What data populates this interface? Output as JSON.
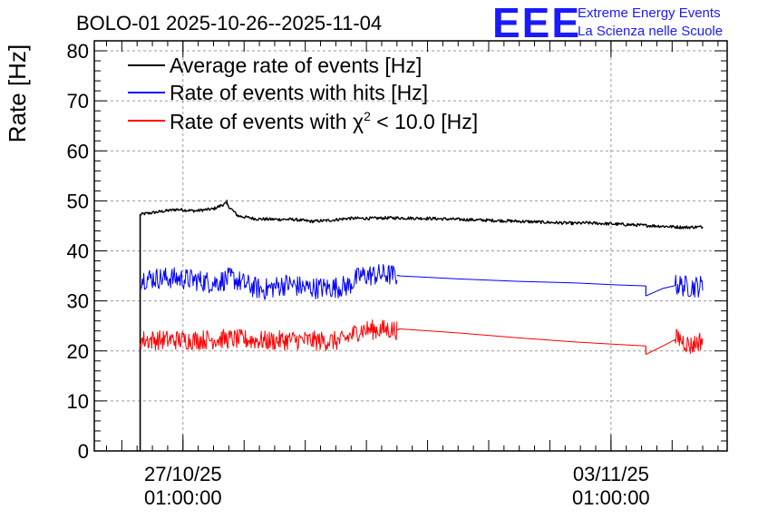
{
  "chart_data": {
    "type": "line",
    "title": "BOLO-01 2025-10-26--2025-11-04",
    "logo": {
      "mark": "EEE",
      "line1": "Extreme Energy Events",
      "line2": "La Scienza nelle Scuole"
    },
    "ylabel": "Rate [Hz]",
    "xlabel": "",
    "ylim": [
      0,
      82
    ],
    "yticks": [
      0,
      10,
      20,
      30,
      40,
      50,
      60,
      70,
      80
    ],
    "xlim": [
      25.55,
      35.9
    ],
    "xticks": [
      {
        "x": 27.0,
        "line1": "27/10/25",
        "line2": "01:00:00"
      },
      {
        "x": 34.0,
        "line1": "03/11/25",
        "line2": "01:00:00"
      }
    ],
    "grid": true,
    "legend_position": "top-left",
    "series": [
      {
        "name": "Average rate of events [Hz]",
        "legend_label": "Average rate of events [Hz]",
        "color": "#000000",
        "noise": 0.3,
        "start_drop_from": 0,
        "segments": [
          [
            [
              26.3,
              47.3
            ],
            [
              26.6,
              47.8
            ],
            [
              26.9,
              48.3
            ],
            [
              27.2,
              48.0
            ],
            [
              27.5,
              48.4
            ],
            [
              27.7,
              49.5
            ],
            [
              27.9,
              47.0
            ],
            [
              28.2,
              46.4
            ],
            [
              28.5,
              46.3
            ],
            [
              28.8,
              46.3
            ],
            [
              29.1,
              45.9
            ],
            [
              29.4,
              46.1
            ],
            [
              29.7,
              46.5
            ],
            [
              30.1,
              46.5
            ],
            [
              30.4,
              46.6
            ],
            [
              31.0,
              46.5
            ],
            [
              31.5,
              46.3
            ],
            [
              32.3,
              46.0
            ],
            [
              33.2,
              45.6
            ],
            [
              33.4,
              45.5
            ],
            [
              33.6,
              45.6
            ],
            [
              34.0,
              45.4
            ],
            [
              34.9,
              44.9
            ],
            [
              35.2,
              44.7
            ],
            [
              35.5,
              44.8
            ]
          ]
        ],
        "spikes": [
          [
            27.72,
            50.2
          ]
        ]
      },
      {
        "name": "Rate of events with hits [Hz]",
        "legend_label": "Rate of events with hits [Hz]",
        "color": "#0000ff",
        "noise": 2.2,
        "segments": [
          [
            [
              26.3,
              34.5
            ],
            [
              26.8,
              34.6
            ],
            [
              27.2,
              34.2
            ],
            [
              27.5,
              33.6
            ],
            [
              27.8,
              34.6
            ],
            [
              28.0,
              33.4
            ],
            [
              28.3,
              32.2
            ],
            [
              28.7,
              33.4
            ],
            [
              29.0,
              32.6
            ],
            [
              29.4,
              32.6
            ],
            [
              29.7,
              33.0
            ],
            [
              29.9,
              35.0
            ],
            [
              30.3,
              35.3
            ],
            [
              30.5,
              35.1
            ]
          ],
          [
            [
              30.55,
              35.0
            ],
            [
              31.5,
              34.4
            ],
            [
              32.5,
              33.9
            ],
            [
              33.4,
              33.6
            ],
            [
              34.1,
              33.2
            ],
            [
              34.57,
              33.0
            ]
          ],
          [
            [
              34.57,
              31.0
            ],
            [
              34.85,
              32.5
            ],
            [
              35.1,
              33.2
            ],
            [
              35.3,
              32.8
            ],
            [
              35.5,
              33.0
            ]
          ]
        ],
        "noise_ranges": [
          [
            26.3,
            30.5
          ],
          [
            35.05,
            35.5
          ]
        ]
      },
      {
        "name": "Rate of events with chi2 < 10.0 [Hz]",
        "legend_label": "Rate of events with",
        "legend_symbol": "χ",
        "legend_sup": "2",
        "legend_suffix": " < 10.0 [Hz]",
        "color": "#ff0000",
        "noise": 2.0,
        "segments": [
          [
            [
              26.3,
              22.2
            ],
            [
              26.8,
              22.2
            ],
            [
              27.2,
              22.2
            ],
            [
              27.6,
              22.4
            ],
            [
              28.0,
              22.3
            ],
            [
              28.4,
              22.0
            ],
            [
              28.8,
              22.2
            ],
            [
              29.2,
              22.0
            ],
            [
              29.6,
              22.0
            ],
            [
              29.9,
              24.2
            ],
            [
              30.3,
              24.3
            ],
            [
              30.5,
              24.2
            ]
          ],
          [
            [
              30.55,
              24.4
            ],
            [
              31.5,
              23.6
            ],
            [
              32.5,
              22.6
            ],
            [
              33.4,
              21.8
            ],
            [
              34.1,
              21.3
            ],
            [
              34.57,
              21.0
            ]
          ],
          [
            [
              34.57,
              19.3
            ],
            [
              34.85,
              21.0
            ],
            [
              35.1,
              22.6
            ],
            [
              35.3,
              21.0
            ],
            [
              35.5,
              22.3
            ]
          ]
        ],
        "noise_ranges": [
          [
            26.3,
            30.5
          ],
          [
            35.05,
            35.5
          ]
        ]
      }
    ]
  }
}
